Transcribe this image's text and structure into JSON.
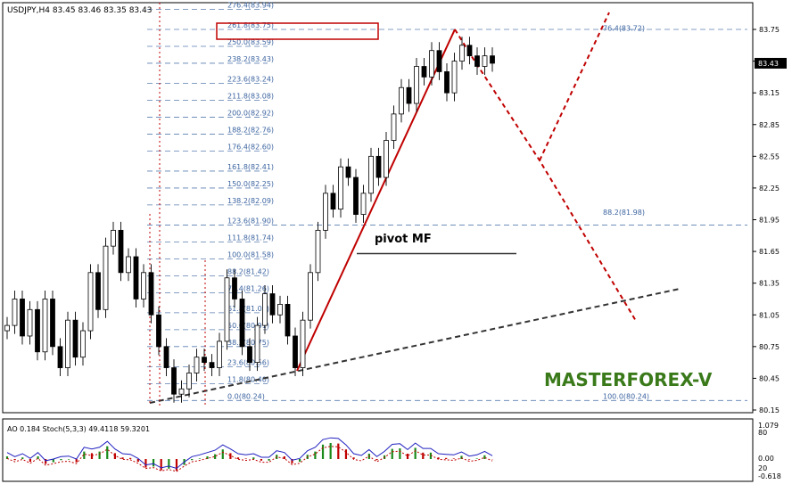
{
  "chart_data": {
    "type": "candlestick",
    "symbol_header": "USDJPY,H4  83.45 83.46 83.35 83.43",
    "price_axis": {
      "ylim": [
        80.15,
        83.94
      ],
      "ticks": [
        "83.75",
        "83.45",
        "83.15",
        "82.85",
        "82.55",
        "82.25",
        "81.95",
        "81.65",
        "81.35",
        "81.05",
        "80.75",
        "80.45",
        "80.15"
      ],
      "current_price": "83.43"
    },
    "fibonacci_levels": [
      {
        "label": "276.4(83.94)",
        "price": 83.94
      },
      {
        "label": "261.8(83.75)",
        "price": 83.75
      },
      {
        "label": "250.0(83.59)",
        "price": 83.59
      },
      {
        "label": "238.2(83.43)",
        "price": 83.43
      },
      {
        "label": "223.6(83.24)",
        "price": 83.24
      },
      {
        "label": "211.8(83.08)",
        "price": 83.08
      },
      {
        "label": "200.0(82.92)",
        "price": 82.92
      },
      {
        "label": "188.2(82.76)",
        "price": 82.76
      },
      {
        "label": "176.4(82.60)",
        "price": 82.6
      },
      {
        "label": "161.8(82.41)",
        "price": 82.41
      },
      {
        "label": "150.0(82.25)",
        "price": 82.25
      },
      {
        "label": "138.2(82.09)",
        "price": 82.09
      },
      {
        "label": "123.6(81.90)",
        "price": 81.9
      },
      {
        "label": "111.8(81.74)",
        "price": 81.74
      },
      {
        "label": "100.0(81.58)",
        "price": 81.58
      },
      {
        "label": "88.2(81.42)",
        "price": 81.42
      },
      {
        "label": "76.4(81.26)",
        "price": 81.26
      },
      {
        "label": "61.8(81.07)",
        "price": 81.07
      },
      {
        "label": "50.0(80.91)",
        "price": 80.91
      },
      {
        "label": "38.2(80.75)",
        "price": 80.75
      },
      {
        "label": "23.6(80.56)",
        "price": 80.56
      },
      {
        "label": "11.8(80.40)",
        "price": 80.4
      },
      {
        "label": "0.0(80.24)",
        "price": 80.24
      }
    ],
    "right_fib_levels": [
      {
        "label": "76.4(83.72)",
        "price": 83.72
      },
      {
        "label": "88.2(81.98)",
        "price": 81.98
      },
      {
        "label": "100.0(80.24)",
        "price": 80.24
      }
    ],
    "annotations": {
      "pivot_label": "pivot MF",
      "pivot_price": 81.63,
      "watermark": "MASTERFOREX-V"
    },
    "close_path": [
      80.95,
      81.2,
      80.85,
      81.1,
      80.7,
      81.2,
      80.75,
      80.55,
      81.0,
      80.65,
      80.9,
      81.45,
      81.1,
      81.7,
      81.85,
      81.45,
      81.6,
      81.2,
      81.45,
      81.05,
      80.75,
      80.55,
      80.3,
      80.35,
      80.5,
      80.65,
      80.6,
      80.55,
      80.8,
      81.4,
      81.2,
      80.75,
      80.6,
      80.95,
      81.25,
      81.05,
      81.15,
      80.85,
      80.55,
      81.0,
      81.45,
      81.85,
      82.2,
      82.05,
      82.45,
      82.35,
      82.0,
      82.2,
      82.55,
      82.35,
      82.7,
      82.95,
      83.2,
      83.05,
      83.4,
      83.3,
      83.55,
      83.35,
      83.15,
      83.45,
      83.6,
      83.5,
      83.4,
      83.5,
      83.43
    ],
    "indicator": {
      "label": "AO 0.184  Stoch(5,3,3) 49.4118 59.3201",
      "axis_ticks": [
        "1.079",
        "80",
        "0.00",
        "20",
        "-0.618"
      ]
    }
  }
}
